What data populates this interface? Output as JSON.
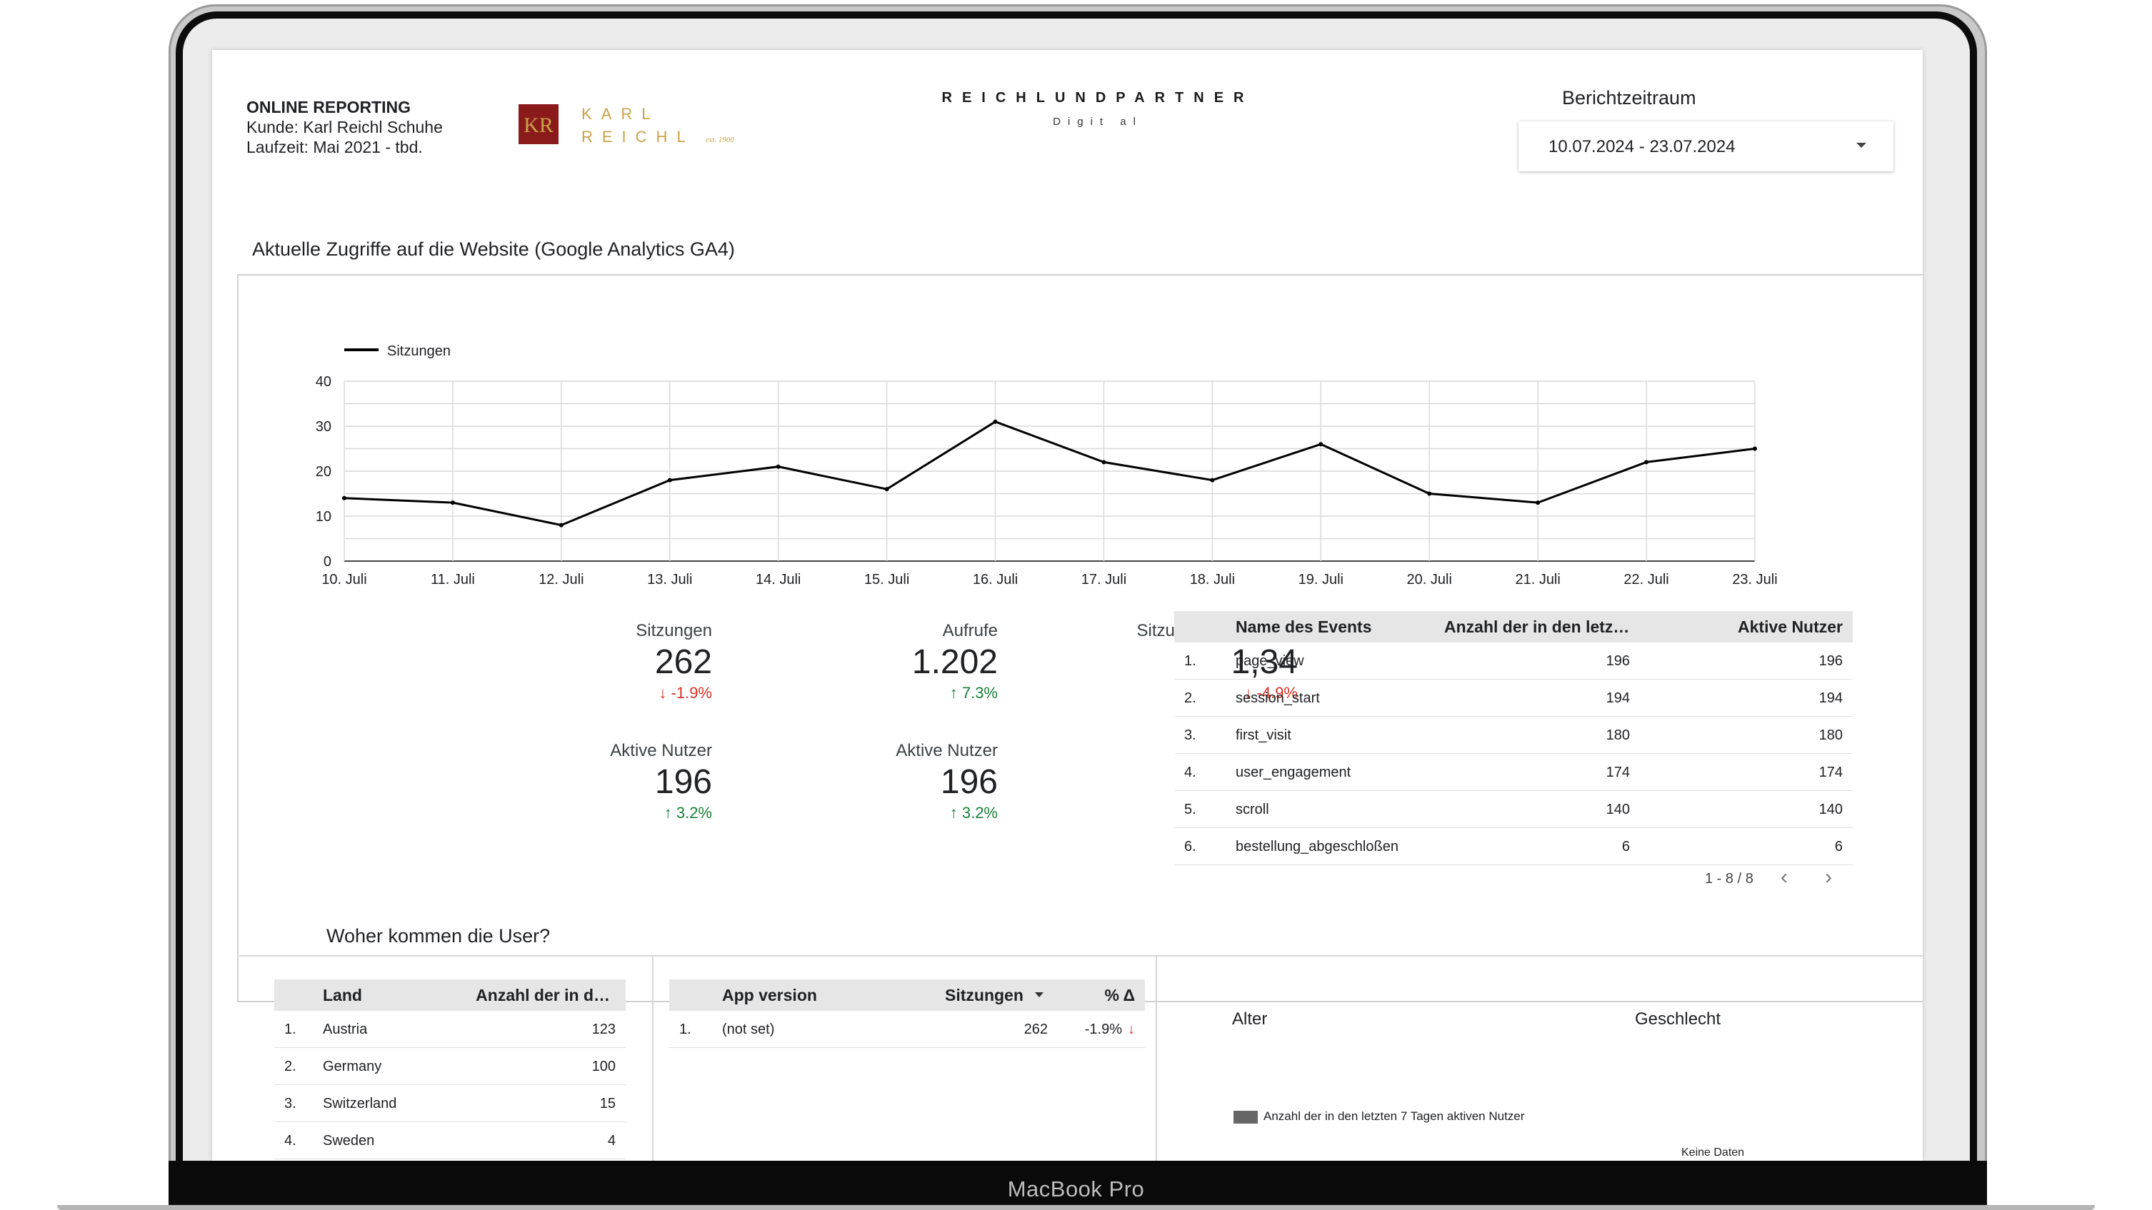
{
  "header": {
    "title": "ONLINE REPORTING",
    "client": "Kunde: Karl Reichl Schuhe",
    "runtime": "Laufzeit: Mai 2021 - tbd.",
    "client_logo_line1": "KARL",
    "client_logo_line2": "REICHL",
    "client_logo_est": "est. 1900",
    "client_logo_mark": "KR",
    "agency_logo": "REICHLUNDPARTNER",
    "agency_sub": "Digit al",
    "period_label": "Berichtzeitraum",
    "period_value": "10.07.2024 - 23.07.2024"
  },
  "sections": {
    "website_title": "Aktuelle Zugriffe auf die Website (Google Analytics GA4)",
    "users_title": "Woher kommen die User?"
  },
  "colors": {
    "line": "#000000",
    "grid": "#d9d9d9",
    "negative": "#d93025",
    "positive": "#188038",
    "brand_red": "#8b1a1a",
    "brand_gold": "#c9a24a"
  },
  "chart_data": {
    "type": "line",
    "title": "",
    "xlabel": "",
    "ylabel": "",
    "ylim": [
      0,
      40
    ],
    "yticks": [
      0,
      10,
      20,
      30,
      40
    ],
    "legend": "top-left",
    "categories": [
      "10. Juli",
      "11. Juli",
      "12. Juli",
      "13. Juli",
      "14. Juli",
      "15. Juli",
      "16. Juli",
      "17. Juli",
      "18. Juli",
      "19. Juli",
      "20. Juli",
      "21. Juli",
      "22. Juli",
      "23. Juli"
    ],
    "series": [
      {
        "name": "Sitzungen",
        "values": [
          14,
          13,
          8,
          18,
          21,
          16,
          31,
          22,
          18,
          26,
          15,
          13,
          22,
          25
        ]
      }
    ]
  },
  "scorecards": [
    {
      "label": "Sitzungen",
      "value": "262",
      "delta": "-1.9%",
      "dir": "down"
    },
    {
      "label": "Aufrufe",
      "value": "1.202",
      "delta": "7.3%",
      "dir": "up"
    },
    {
      "label": "Sitzungen pro Nutzer",
      "value": "1,34",
      "delta": "-4.9%",
      "dir": "down"
    },
    {
      "label": "Aktive Nutzer",
      "value": "196",
      "delta": "3.2%",
      "dir": "up"
    },
    {
      "label": "Aktive Nutzer",
      "value": "196",
      "delta": "3.2%",
      "dir": "up"
    }
  ],
  "events_table": {
    "headers": [
      "Name des Events",
      "Anzahl der in den letz…",
      "Aktive Nutzer"
    ],
    "rows": [
      {
        "idx": "1.",
        "name": "page_view",
        "count": "196",
        "users": "196"
      },
      {
        "idx": "2.",
        "name": "session_start",
        "count": "194",
        "users": "194"
      },
      {
        "idx": "3.",
        "name": "first_visit",
        "count": "180",
        "users": "180"
      },
      {
        "idx": "4.",
        "name": "user_engagement",
        "count": "174",
        "users": "174"
      },
      {
        "idx": "5.",
        "name": "scroll",
        "count": "140",
        "users": "140"
      },
      {
        "idx": "6.",
        "name": "bestellung_abgeschloßen",
        "count": "6",
        "users": "6"
      }
    ],
    "pager": "1 - 8 / 8"
  },
  "country_table": {
    "headers": [
      "Land",
      "Anzahl der in d…"
    ],
    "rows": [
      {
        "idx": "1.",
        "name": "Austria",
        "count": "123"
      },
      {
        "idx": "2.",
        "name": "Germany",
        "count": "100"
      },
      {
        "idx": "3.",
        "name": "Switzerland",
        "count": "15"
      },
      {
        "idx": "4.",
        "name": "Sweden",
        "count": "4"
      }
    ]
  },
  "app_table": {
    "headers": [
      "App version",
      "Sitzungen",
      "% Δ"
    ],
    "rows": [
      {
        "idx": "1.",
        "name": "(not set)",
        "sessions": "262",
        "delta": "-1.9%"
      }
    ]
  },
  "demographics": {
    "age_title": "Alter",
    "gender_title": "Geschlecht",
    "legend_label": "Anzahl der in den letzten 7 Tagen aktiven Nutzer",
    "no_data": "Keine Daten"
  },
  "laptop": {
    "brand": "MacBook Pro"
  }
}
